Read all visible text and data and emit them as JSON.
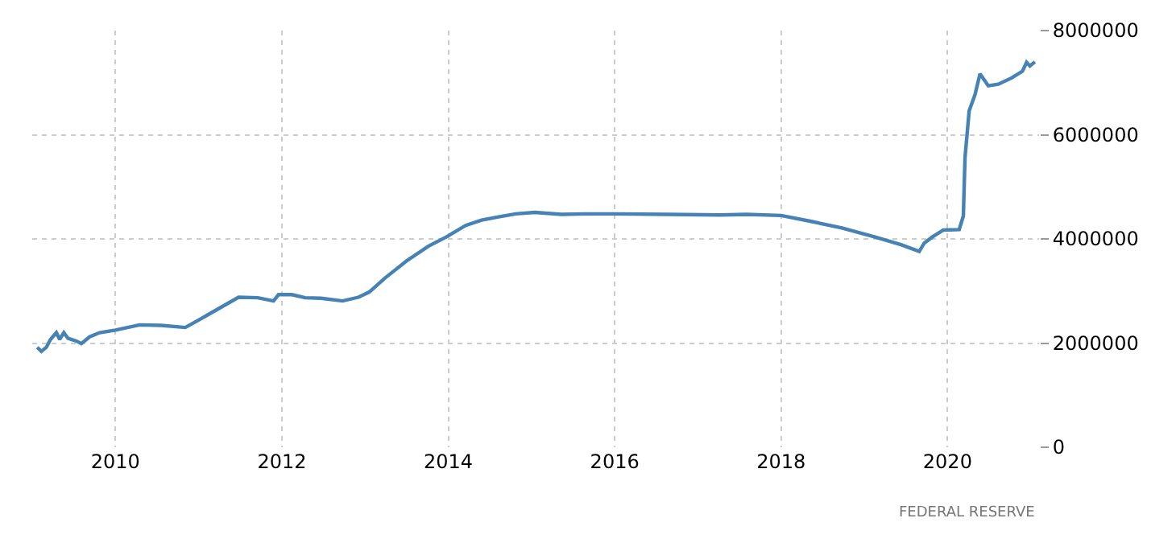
{
  "chart_data": {
    "type": "line",
    "x": [
      2009.06,
      2009.11,
      2009.17,
      2009.22,
      2009.29,
      2009.33,
      2009.38,
      2009.43,
      2009.53,
      2009.59,
      2009.69,
      2009.81,
      2010.0,
      2010.29,
      2010.55,
      2010.84,
      2011.03,
      2011.26,
      2011.48,
      2011.71,
      2011.9,
      2011.96,
      2012.12,
      2012.28,
      2012.47,
      2012.73,
      2012.92,
      2013.05,
      2013.24,
      2013.5,
      2013.76,
      2013.98,
      2014.21,
      2014.4,
      2014.59,
      2014.81,
      2015.04,
      2015.36,
      2015.65,
      2016.0,
      2016.63,
      2017.27,
      2017.58,
      2018.0,
      2018.35,
      2018.73,
      2019.12,
      2019.44,
      2019.66,
      2019.72,
      2019.82,
      2019.95,
      2020.14,
      2020.19,
      2020.21,
      2020.26,
      2020.33,
      2020.39,
      2020.49,
      2020.61,
      2020.77,
      2020.9,
      2020.95,
      2020.99,
      2021.05
    ],
    "series": [
      {
        "color": "#4682b4",
        "values": [
          1920000,
          1840000,
          1920000,
          2070000,
          2200000,
          2070000,
          2200000,
          2090000,
          2040000,
          1990000,
          2120000,
          2200000,
          2250000,
          2350000,
          2340000,
          2300000,
          2470000,
          2680000,
          2880000,
          2870000,
          2810000,
          2930000,
          2930000,
          2870000,
          2860000,
          2810000,
          2880000,
          2980000,
          3250000,
          3580000,
          3860000,
          4040000,
          4260000,
          4360000,
          4420000,
          4480000,
          4510000,
          4470000,
          4480000,
          4480000,
          4470000,
          4460000,
          4470000,
          4450000,
          4340000,
          4210000,
          4040000,
          3890000,
          3760000,
          3920000,
          4040000,
          4170000,
          4180000,
          4440000,
          5560000,
          6460000,
          6770000,
          7170000,
          6940000,
          6970000,
          7090000,
          7220000,
          7390000,
          7320000,
          7400000
        ]
      }
    ],
    "xlim": [
      2009.0,
      2021.1
    ],
    "xticks": [
      2010,
      2012,
      2014,
      2016,
      2018,
      2020
    ],
    "ylim": [
      0,
      8000000
    ],
    "yticks": [
      0,
      2000000,
      4000000,
      6000000,
      8000000
    ],
    "grid": true,
    "legend": false,
    "line_style": "solid",
    "annotations": [
      "FEDERAL RESERVE"
    ]
  }
}
